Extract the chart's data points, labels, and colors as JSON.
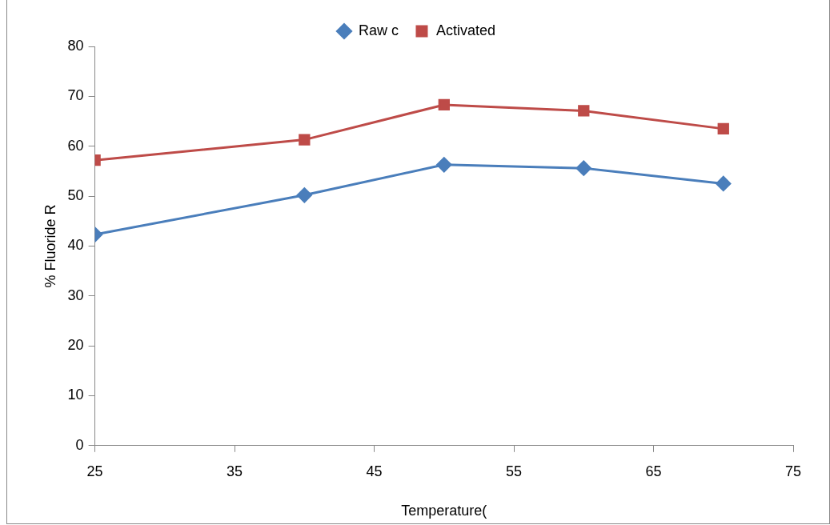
{
  "chart_data": {
    "type": "line",
    "xlabel": "Temperature(",
    "ylabel": "% Fluoride R",
    "x": [
      25,
      40,
      50,
      60,
      70
    ],
    "series": [
      {
        "name": "Raw c",
        "color": "#4a7ebb",
        "values": [
          42.3,
          50.2,
          56.3,
          55.6,
          52.5
        ],
        "marker": "diamond"
      },
      {
        "name": "Activated",
        "color": "#be4b48",
        "values": [
          57.2,
          61.3,
          68.3,
          67.1,
          63.5
        ],
        "marker": "square"
      }
    ],
    "xlim": [
      25,
      75
    ],
    "xticks": [
      25,
      35,
      45,
      55,
      65,
      75
    ],
    "ylim": [
      0,
      80
    ],
    "yticks": [
      0,
      10,
      20,
      30,
      40,
      50,
      60,
      70,
      80
    ],
    "grid": false,
    "legend": "top",
    "line_style": "solid"
  }
}
